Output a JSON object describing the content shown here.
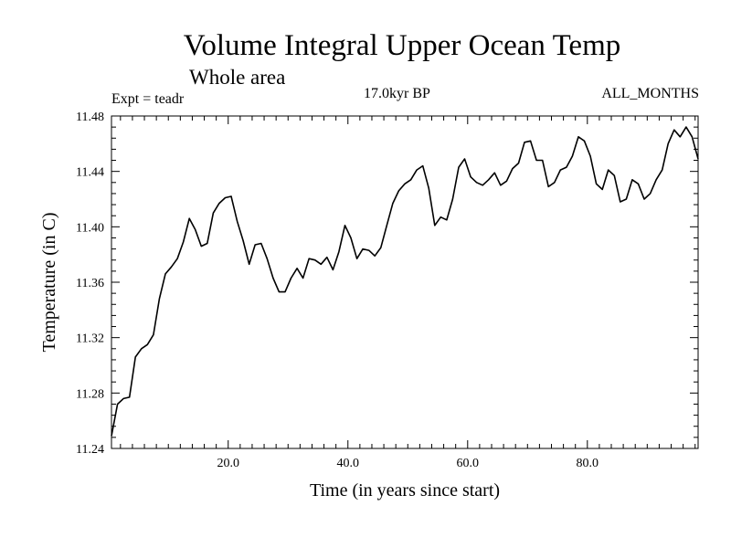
{
  "chart_data": {
    "type": "line",
    "title": "Volume Integral Upper Ocean Temp",
    "subtitle": "Whole area",
    "expt_label": "Expt = teadr",
    "period_label": "17.0kyr BP",
    "months_label": "ALL_MONTHS",
    "xlabel": "Time (in years since start)",
    "ylabel": "Temperature (in C)",
    "xlim": [
      0.5,
      98.5
    ],
    "ylim": [
      11.24,
      11.48
    ],
    "x_ticks": [
      20,
      40,
      60,
      80
    ],
    "x_tick_labels": [
      "20.0",
      "40.0",
      "60.0",
      "80.0"
    ],
    "y_ticks": [
      11.24,
      11.28,
      11.32,
      11.36,
      11.4,
      11.44,
      11.48
    ],
    "y_tick_labels": [
      "11.24",
      "11.28",
      "11.32",
      "11.36",
      "11.40",
      "11.44",
      "11.48"
    ],
    "x": [
      0.5,
      1.5,
      2.5,
      3.5,
      4.5,
      5.5,
      6.5,
      7.5,
      8.5,
      9.5,
      10.5,
      11.5,
      12.5,
      13.5,
      14.5,
      15.5,
      16.5,
      17.5,
      18.5,
      19.5,
      20.5,
      21.5,
      22.5,
      23.5,
      24.5,
      25.5,
      26.5,
      27.5,
      28.5,
      29.5,
      30.5,
      31.5,
      32.5,
      33.5,
      34.5,
      35.5,
      36.5,
      37.5,
      38.5,
      39.5,
      40.5,
      41.5,
      42.5,
      43.5,
      44.5,
      45.5,
      46.5,
      47.5,
      48.5,
      49.5,
      50.5,
      51.5,
      52.5,
      53.5,
      54.5,
      55.5,
      56.5,
      57.5,
      58.5,
      59.5,
      60.5,
      61.5,
      62.5,
      63.5,
      64.5,
      65.5,
      66.5,
      67.5,
      68.5,
      69.5,
      70.5,
      71.5,
      72.5,
      73.5,
      74.5,
      75.5,
      76.5,
      77.5,
      78.5,
      79.5,
      80.5,
      81.5,
      82.5,
      83.5,
      84.5,
      85.5,
      86.5,
      87.5,
      88.5,
      89.5,
      90.5,
      91.5,
      92.5,
      93.5,
      94.5,
      95.5,
      96.5,
      97.5,
      98.5
    ],
    "values": [
      11.249,
      11.272,
      11.276,
      11.277,
      11.306,
      11.312,
      11.315,
      11.322,
      11.348,
      11.366,
      11.371,
      11.377,
      11.389,
      11.406,
      11.398,
      11.386,
      11.388,
      11.41,
      11.417,
      11.421,
      11.422,
      11.404,
      11.39,
      11.373,
      11.387,
      11.388,
      11.377,
      11.363,
      11.353,
      11.353,
      11.363,
      11.37,
      11.363,
      11.377,
      11.376,
      11.373,
      11.378,
      11.369,
      11.382,
      11.401,
      11.392,
      11.377,
      11.384,
      11.383,
      11.379,
      11.385,
      11.401,
      11.417,
      11.426,
      11.431,
      11.434,
      11.441,
      11.444,
      11.428,
      11.401,
      11.407,
      11.405,
      11.42,
      11.443,
      11.449,
      11.436,
      11.432,
      11.43,
      11.434,
      11.439,
      11.43,
      11.433,
      11.442,
      11.446,
      11.461,
      11.462,
      11.448,
      11.448,
      11.429,
      11.432,
      11.441,
      11.443,
      11.451,
      11.465,
      11.462,
      11.451,
      11.431,
      11.427,
      11.441,
      11.437,
      11.418,
      11.42,
      11.434,
      11.431,
      11.42,
      11.424,
      11.434,
      11.441,
      11.46,
      11.47,
      11.465,
      11.472,
      11.465,
      11.449
    ]
  }
}
